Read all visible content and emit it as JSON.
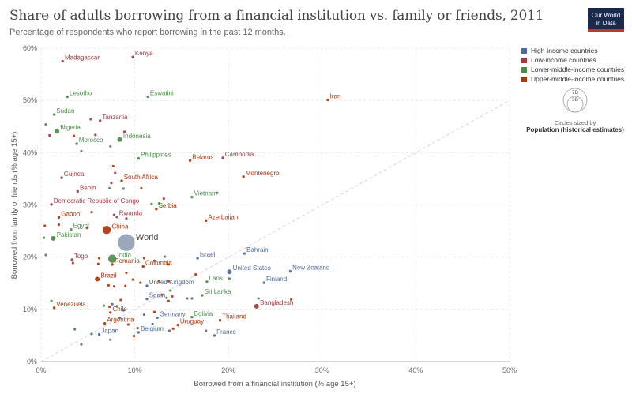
{
  "header": {
    "title": "Share of adults borrowing from a financial institution vs. family or friends, 2011",
    "subtitle": "Percentage of respondents who report borrowing in the past 12 months.",
    "logo_line1": "Our World",
    "logo_line2": "in Data"
  },
  "legend": {
    "items": [
      {
        "label": "High-income countries",
        "color": "#4c6a9c"
      },
      {
        "label": "Low-income countries",
        "color": "#a2393f"
      },
      {
        "label": "Lower-middle-income countries",
        "color": "#4c8c4a"
      },
      {
        "label": "Upper-middle-income countries",
        "color": "#b13507"
      }
    ],
    "size_values": [
      "7B",
      "3B"
    ],
    "size_caption": "Circles sized by",
    "size_variable": "Population (historical estimates)"
  },
  "chart_data": {
    "type": "scatter",
    "title": "Share of adults borrowing from a financial institution vs. family or friends, 2011",
    "subtitle": "Percentage of respondents who report borrowing in the past 12 months.",
    "xlabel": "Borrowed from a financial institution (% age 15+)",
    "ylabel": "Borrowed from family or friends (% age 15+)",
    "xlim": [
      0,
      50
    ],
    "ylim": [
      0,
      60
    ],
    "x_ticks": [
      "0%",
      "10%",
      "20%",
      "30%",
      "40%",
      "50%"
    ],
    "y_ticks": [
      "0%",
      "10%",
      "20%",
      "30%",
      "40%",
      "50%",
      "60%"
    ],
    "grid": true,
    "diagonal_reference_line": true,
    "legend_position": "top-right",
    "points": [
      {
        "label": "Madagascar",
        "x": 2.3,
        "y": 57.5,
        "group": "Low-income countries",
        "size": "small"
      },
      {
        "label": "Kenya",
        "x": 9.8,
        "y": 58.3,
        "group": "Low-income countries",
        "size": "small"
      },
      {
        "label": "Lesotho",
        "x": 2.8,
        "y": 50.7,
        "group": "Lower-middle-income countries",
        "size": "small"
      },
      {
        "label": "Eswatini",
        "x": 11.4,
        "y": 50.7,
        "group": "Lower-middle-income countries",
        "size": "small"
      },
      {
        "label": "Iran",
        "x": 30.6,
        "y": 50.1,
        "group": "Upper-middle-income countries",
        "size": "small"
      },
      {
        "label": "Sudan",
        "x": 1.4,
        "y": 47.3,
        "group": "Lower-middle-income countries",
        "size": "small"
      },
      {
        "label": "Tanzania",
        "x": 6.3,
        "y": 46.1,
        "group": "Low-income countries",
        "size": "small"
      },
      {
        "label": "Nigeria",
        "x": 1.7,
        "y": 44.1,
        "group": "Lower-middle-income countries",
        "size": "medium"
      },
      {
        "label": "Indonesia",
        "x": 8.4,
        "y": 42.5,
        "group": "Lower-middle-income countries",
        "size": "medium"
      },
      {
        "label": "Morocco",
        "x": 3.8,
        "y": 41.7,
        "group": "Lower-middle-income countries",
        "size": "small"
      },
      {
        "label": "Philippines",
        "x": 10.4,
        "y": 38.9,
        "group": "Lower-middle-income countries",
        "size": "small"
      },
      {
        "label": "Belarus",
        "x": 15.9,
        "y": 38.5,
        "group": "Upper-middle-income countries",
        "size": "small"
      },
      {
        "label": "Cambodia",
        "x": 19.4,
        "y": 39.0,
        "group": "Low-income countries",
        "size": "small"
      },
      {
        "label": "Montenegro",
        "x": 21.6,
        "y": 35.4,
        "group": "Upper-middle-income countries",
        "size": "small"
      },
      {
        "label": "Guinea",
        "x": 2.2,
        "y": 35.2,
        "group": "Low-income countries",
        "size": "small"
      },
      {
        "label": "South Africa",
        "x": 8.6,
        "y": 34.6,
        "group": "Upper-middle-income countries",
        "size": "small"
      },
      {
        "label": "Benin",
        "x": 3.9,
        "y": 32.6,
        "group": "Low-income countries",
        "size": "small"
      },
      {
        "label": "Vietnam",
        "x": 16.1,
        "y": 31.5,
        "group": "Lower-middle-income countries",
        "size": "small"
      },
      {
        "label": "Democratic Republic of Congo",
        "x": 1.1,
        "y": 30.1,
        "group": "Low-income countries",
        "size": "small"
      },
      {
        "label": "Serbia",
        "x": 12.3,
        "y": 29.2,
        "group": "Upper-middle-income countries",
        "size": "small"
      },
      {
        "label": "Gabon",
        "x": 1.9,
        "y": 27.6,
        "group": "Upper-middle-income countries",
        "size": "small"
      },
      {
        "label": "Rwanda",
        "x": 8.1,
        "y": 27.7,
        "group": "Low-income countries",
        "size": "small"
      },
      {
        "label": "Azerbaijan",
        "x": 17.6,
        "y": 27.0,
        "group": "Upper-middle-income countries",
        "size": "small"
      },
      {
        "label": "Egypt",
        "x": 3.2,
        "y": 25.3,
        "group": "Lower-middle-income countries",
        "size": "small"
      },
      {
        "label": "Pakistan",
        "x": 1.3,
        "y": 23.6,
        "group": "Lower-middle-income countries",
        "size": "medium"
      },
      {
        "label": "China",
        "x": 7.0,
        "y": 25.2,
        "group": "Upper-middle-income countries",
        "size": "large"
      },
      {
        "label": "World",
        "x": 9.1,
        "y": 22.8,
        "group": "World",
        "size": "world"
      },
      {
        "label": "Bahrain",
        "x": 21.7,
        "y": 20.7,
        "group": "High-income countries",
        "size": "small"
      },
      {
        "label": "Israel",
        "x": 16.7,
        "y": 19.8,
        "group": "High-income countries",
        "size": "small"
      },
      {
        "label": "Togo",
        "x": 3.3,
        "y": 19.5,
        "group": "Low-income countries",
        "size": "small"
      },
      {
        "label": "India",
        "x": 7.6,
        "y": 19.7,
        "group": "Lower-middle-income countries",
        "size": "large"
      },
      {
        "label": "Romania",
        "x": 7.6,
        "y": 18.6,
        "group": "Upper-middle-income countries",
        "size": "small"
      },
      {
        "label": "Colombia",
        "x": 10.9,
        "y": 18.2,
        "group": "Upper-middle-income countries",
        "size": "small"
      },
      {
        "label": "United States",
        "x": 20.1,
        "y": 17.2,
        "group": "High-income countries",
        "size": "medium"
      },
      {
        "label": "New Zealand",
        "x": 26.6,
        "y": 17.3,
        "group": "High-income countries",
        "size": "small"
      },
      {
        "label": "Brazil",
        "x": 6.0,
        "y": 15.8,
        "group": "Upper-middle-income countries",
        "size": "medium"
      },
      {
        "label": "Laos",
        "x": 17.7,
        "y": 15.3,
        "group": "Lower-middle-income countries",
        "size": "small"
      },
      {
        "label": "Finland",
        "x": 23.8,
        "y": 15.1,
        "group": "High-income countries",
        "size": "small"
      },
      {
        "label": "United Kingdom",
        "x": 11.3,
        "y": 14.5,
        "group": "High-income countries",
        "size": "small"
      },
      {
        "label": "Sri Lanka",
        "x": 17.2,
        "y": 12.7,
        "group": "Lower-middle-income countries",
        "size": "small"
      },
      {
        "label": "Spain",
        "x": 11.3,
        "y": 12.0,
        "group": "High-income countries",
        "size": "small"
      },
      {
        "label": "Venezuela",
        "x": 1.4,
        "y": 10.3,
        "group": "Upper-middle-income countries",
        "size": "small"
      },
      {
        "label": "Bangladesh",
        "x": 23.0,
        "y": 10.6,
        "group": "Low-income countries",
        "size": "medium"
      },
      {
        "label": "Chile",
        "x": 7.4,
        "y": 9.4,
        "group": "Upper-middle-income countries",
        "size": "small"
      },
      {
        "label": "Bolivia",
        "x": 16.1,
        "y": 8.5,
        "group": "Lower-middle-income countries",
        "size": "small"
      },
      {
        "label": "Germany",
        "x": 12.4,
        "y": 8.4,
        "group": "High-income countries",
        "size": "small"
      },
      {
        "label": "Thailand",
        "x": 19.1,
        "y": 7.9,
        "group": "Upper-middle-income countries",
        "size": "small"
      },
      {
        "label": "Argentina",
        "x": 6.8,
        "y": 7.3,
        "group": "Upper-middle-income countries",
        "size": "small"
      },
      {
        "label": "Uruguay",
        "x": 14.6,
        "y": 7.0,
        "group": "Upper-middle-income countries",
        "size": "small"
      },
      {
        "label": "Belgium",
        "x": 10.4,
        "y": 5.6,
        "group": "High-income countries",
        "size": "small"
      },
      {
        "label": "Japan",
        "x": 6.2,
        "y": 5.2,
        "group": "High-income countries",
        "size": "small"
      },
      {
        "label": "France",
        "x": 18.5,
        "y": 5.0,
        "group": "High-income countries",
        "size": "small"
      }
    ],
    "unlabeled_points": [
      [
        0.5,
        45.4,
        "Lower-middle-income countries"
      ],
      [
        0.9,
        43.3,
        "Low-income countries"
      ],
      [
        2.2,
        45.1,
        "Lower-middle-income countries"
      ],
      [
        3.5,
        43.2,
        "Upper-middle-income countries"
      ],
      [
        5.3,
        46.4,
        "Low-income countries"
      ],
      [
        5.8,
        43.4,
        "Low-income countries"
      ],
      [
        7.4,
        41.2,
        "Lower-middle-income countries"
      ],
      [
        8.9,
        44.0,
        "Low-income countries"
      ],
      [
        4.3,
        40.3,
        "Lower-middle-income countries"
      ],
      [
        7.7,
        37.4,
        "Upper-middle-income countries"
      ],
      [
        7.9,
        36.1,
        "Low-income countries"
      ],
      [
        7.5,
        34.2,
        "Low-income countries"
      ],
      [
        7.3,
        33.2,
        "Lower-middle-income countries"
      ],
      [
        8.8,
        33.1,
        "High-income countries"
      ],
      [
        10.7,
        33.2,
        "Low-income countries"
      ],
      [
        12.6,
        30.3,
        "Lower-middle-income countries"
      ],
      [
        13.1,
        31.2,
        "Low-income countries"
      ],
      [
        11.8,
        30.2,
        "Lower-middle-income countries"
      ],
      [
        18.8,
        32.3,
        "Lower-middle-income countries"
      ],
      [
        5.4,
        28.6,
        "Low-income countries"
      ],
      [
        7.8,
        28.1,
        "Low-income countries"
      ],
      [
        9.1,
        27.4,
        "Low-income countries"
      ],
      [
        0.4,
        26.0,
        "Upper-middle-income countries"
      ],
      [
        0.3,
        23.7,
        "Lower-middle-income countries"
      ],
      [
        1.9,
        26.2,
        "Upper-middle-income countries"
      ],
      [
        4.9,
        25.6,
        "Upper-middle-income countries"
      ],
      [
        7.1,
        25.8,
        "Lower-middle-income countries"
      ],
      [
        10.7,
        23.6,
        "Upper-middle-income countries"
      ],
      [
        10.3,
        23.7,
        "Lower-middle-income countries"
      ],
      [
        0.5,
        20.4,
        "Lower-middle-income countries"
      ],
      [
        3.4,
        18.9,
        "Upper-middle-income countries"
      ],
      [
        6.1,
        18.7,
        "Upper-middle-income countries"
      ],
      [
        6.2,
        19.8,
        "Upper-middle-income countries"
      ],
      [
        11.0,
        19.8,
        "Upper-middle-income countries"
      ],
      [
        13.2,
        20.1,
        "Lower-middle-income countries"
      ],
      [
        12.1,
        19.3,
        "Upper-middle-income countries"
      ],
      [
        13.6,
        18.6,
        "Upper-middle-income countries"
      ],
      [
        9.1,
        17.0,
        "Upper-middle-income countries"
      ],
      [
        9.8,
        15.7,
        "Upper-middle-income countries"
      ],
      [
        12.6,
        15.4,
        "Upper-middle-income countries"
      ],
      [
        13.6,
        15.4,
        "Upper-middle-income countries"
      ],
      [
        16.5,
        16.7,
        "Upper-middle-income countries"
      ],
      [
        20.1,
        15.9,
        "Lower-middle-income countries"
      ],
      [
        9.0,
        14.5,
        "Upper-middle-income countries"
      ],
      [
        10.6,
        15.1,
        "Upper-middle-income countries"
      ],
      [
        13.8,
        13.6,
        "Lower-middle-income countries"
      ],
      [
        7.2,
        14.6,
        "Upper-middle-income countries"
      ],
      [
        7.8,
        14.4,
        "Upper-middle-income countries"
      ],
      [
        14.0,
        12.5,
        "Upper-middle-income countries"
      ],
      [
        16.1,
        12.1,
        "High-income countries"
      ],
      [
        12.9,
        12.8,
        "Upper-middle-income countries"
      ],
      [
        13.4,
        12.2,
        "High-income countries"
      ],
      [
        15.6,
        12.1,
        "Lower-middle-income countries"
      ],
      [
        13.6,
        11.6,
        "Upper-middle-income countries"
      ],
      [
        8.5,
        11.8,
        "Upper-middle-income countries"
      ],
      [
        7.6,
        11.0,
        "High-income countries"
      ],
      [
        6.7,
        10.7,
        "Lower-middle-income countries"
      ],
      [
        7.3,
        10.5,
        "Upper-middle-income countries"
      ],
      [
        8.1,
        10.6,
        "Lower-middle-income countries"
      ],
      [
        23.2,
        12.1,
        "High-income countries"
      ],
      [
        26.7,
        11.9,
        "Upper-middle-income countries"
      ],
      [
        1.1,
        11.6,
        "Lower-middle-income countries"
      ],
      [
        8.8,
        9.8,
        "High-income countries"
      ],
      [
        11.0,
        9.0,
        "High-income countries"
      ],
      [
        12.1,
        9.5,
        "Upper-middle-income countries"
      ],
      [
        8.4,
        8.4,
        "High-income countries"
      ],
      [
        9.3,
        7.1,
        "Upper-middle-income countries"
      ],
      [
        10.3,
        6.4,
        "Upper-middle-income countries"
      ],
      [
        11.9,
        7.2,
        "High-income countries"
      ],
      [
        13.7,
        5.9,
        "High-income countries"
      ],
      [
        14.1,
        6.3,
        "Upper-middle-income countries"
      ],
      [
        17.6,
        5.9,
        "High-income countries"
      ],
      [
        3.6,
        6.2,
        "High-income countries"
      ],
      [
        5.4,
        5.3,
        "High-income countries"
      ],
      [
        9.9,
        4.9,
        "Upper-middle-income countries"
      ],
      [
        7.4,
        4.2,
        "High-income countries"
      ],
      [
        4.3,
        3.3,
        "High-income countries"
      ]
    ]
  }
}
